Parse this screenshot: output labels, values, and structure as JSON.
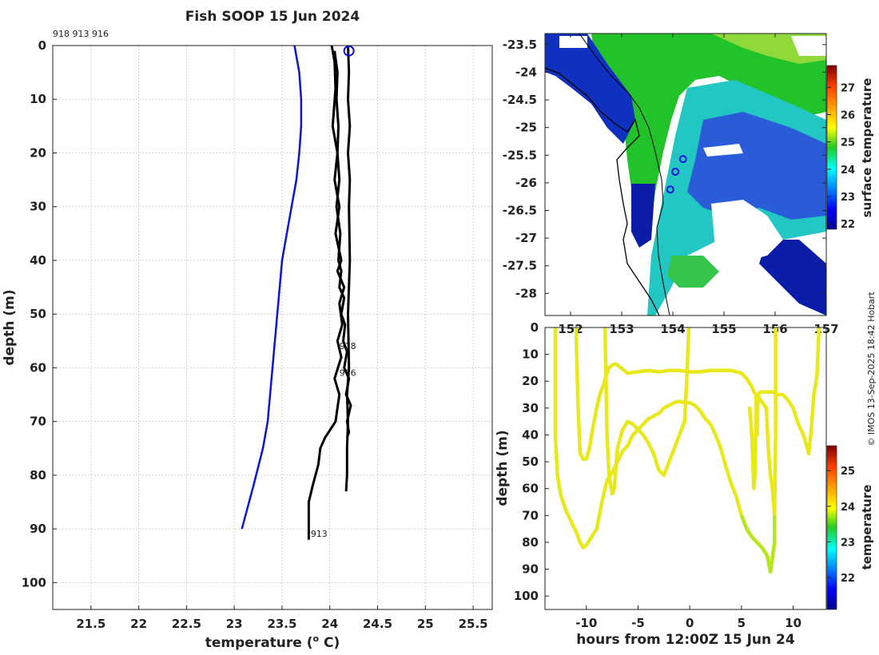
{
  "title": "Fish SOOP 15 Jun 2024",
  "credit": "© IMOS 13-Sep-2025 18:42 Hobart",
  "colors": {
    "climatology": "#0a14d8",
    "profiles": "#000000",
    "yellow": "#e8e81a",
    "greenyellow": "#b6e620"
  },
  "chart_data": [
    {
      "type": "line",
      "name": "temperature-depth-profiles",
      "xlabel": "temperature (",
      "xlabel_unit": "o",
      "xlabel_tail": " C)",
      "ylabel": "depth (m)",
      "xlim": [
        21.1,
        25.7
      ],
      "ylim": [
        105,
        0
      ],
      "xticks": [
        "21.5",
        "22",
        "22.5",
        "23",
        "23.5",
        "24",
        "24.5",
        "25",
        "25.5"
      ],
      "yticks": [
        "0",
        "10",
        "20",
        "30",
        "40",
        "50",
        "60",
        "70",
        "80",
        "90",
        "100"
      ],
      "top_label": "918 913 916",
      "profile_labels": [
        {
          "text": "918",
          "x": 24.1,
          "y": 56.5
        },
        {
          "text": "916",
          "x": 24.1,
          "y": 61.5
        },
        {
          "text": "913",
          "x": 23.8,
          "y": 91.5
        }
      ],
      "marker": {
        "x": 24.2,
        "y": 1
      },
      "series": [
        {
          "name": "climatology",
          "x": [
            23.63,
            23.68,
            23.7,
            23.7,
            23.68,
            23.65,
            23.6,
            23.55,
            23.5,
            23.45,
            23.4,
            23.35,
            23.3,
            23.2,
            23.08
          ],
          "y": [
            0,
            5,
            10,
            15,
            20,
            25,
            30,
            35,
            40,
            50,
            60,
            70,
            75,
            82,
            90
          ]
        },
        {
          "name": "918",
          "x": [
            24.05,
            24.08,
            24.07,
            24.09,
            24.08,
            24.1,
            24.07,
            24.11,
            24.09,
            24.12,
            24.1,
            24.15,
            24.12,
            24.16,
            24.14,
            24.18,
            24.15,
            24.2,
            24.17,
            24.22,
            24.18,
            24.2,
            24.18
          ],
          "y": [
            1,
            5,
            10,
            15,
            20,
            25,
            30,
            35,
            40,
            42,
            45,
            47,
            50,
            52,
            55,
            57,
            60,
            62,
            65,
            67,
            70,
            72,
            73
          ]
        },
        {
          "name": "916",
          "x": [
            24.19,
            24.2,
            24.19,
            24.21,
            24.19,
            24.21,
            24.2,
            24.21,
            24.19,
            24.2,
            24.18,
            24.19,
            24.18,
            24.18,
            24.17
          ],
          "y": [
            0,
            5,
            10,
            15,
            20,
            25,
            30,
            40,
            50,
            60,
            65,
            70,
            75,
            80,
            83
          ]
        },
        {
          "name": "913",
          "x": [
            24.02,
            24.05,
            24.06,
            24.03,
            24.08,
            24.05,
            24.1,
            24.06,
            24.12,
            24.08,
            24.15,
            24.1,
            24.13,
            24.08,
            24.12,
            24.05,
            24.1,
            24.06,
            23.95,
            23.9,
            23.88,
            23.82,
            23.78,
            23.78,
            23.78
          ],
          "y": [
            0,
            3,
            8,
            15,
            20,
            25,
            30,
            35,
            40,
            42,
            45,
            48,
            52,
            55,
            58,
            62,
            65,
            70,
            73,
            75,
            78,
            82,
            85,
            88,
            92
          ]
        }
      ]
    },
    {
      "type": "heatmap",
      "name": "surface-temperature-map",
      "colorbar_label": "surface temperature",
      "colorbar_ticks": [
        "22",
        "23",
        "24",
        "25",
        "26",
        "27"
      ],
      "colorbar_range": [
        21.8,
        27.8
      ],
      "xticks": [
        "152",
        "153",
        "154",
        "155",
        "156",
        "157"
      ],
      "yticks": [
        "-23.5",
        "-24",
        "-24.5",
        "-25",
        "-25.5",
        "-26",
        "-26.5",
        "-27",
        "-27.5",
        "-28"
      ],
      "xlim": [
        151.5,
        157
      ],
      "ylim": [
        -28.4,
        -23.3
      ],
      "markers": [
        {
          "lon": 154.2,
          "lat": -25.57
        },
        {
          "lon": 154.05,
          "lat": -25.8
        },
        {
          "lon": 153.95,
          "lat": -26.12
        }
      ]
    },
    {
      "type": "scatter",
      "name": "depth-time-section",
      "xlabel": "hours from 12:00Z 15 Jun 24",
      "ylabel": "depth (m)",
      "colorbar_label": "temperature",
      "colorbar_ticks": [
        "22",
        "23",
        "24",
        "25"
      ],
      "colorbar_range": [
        21.1,
        25.7
      ],
      "xlim": [
        -14,
        13.2
      ],
      "ylim": [
        105,
        0
      ],
      "xticks": [
        "-10",
        "-5",
        "0",
        "5",
        "10"
      ],
      "yticks": [
        "0",
        "10",
        "20",
        "30",
        "40",
        "50",
        "60",
        "70",
        "80",
        "90",
        "100"
      ],
      "series": [
        {
          "name": "dive-a",
          "x": [
            -13,
            -13,
            -12.8,
            -12.5,
            -12,
            -11.5,
            -11,
            -10.6,
            -10.3,
            -10,
            -9.5,
            -9,
            -8.5,
            -8,
            -7.5,
            -7,
            -6.5,
            -6,
            -5.5,
            -5,
            -4.5,
            -4,
            -3.5,
            -3,
            -2.5,
            -2,
            -1.5,
            -1,
            -0.5,
            0,
            0.5,
            1,
            1.5,
            2,
            2.5,
            3,
            3.5,
            4,
            4.5,
            5,
            5.5,
            6,
            6.5,
            7,
            7.5,
            7.8,
            8.2,
            8.2,
            8.3,
            8.3
          ],
          "y": [
            0,
            40,
            55,
            62,
            68,
            72,
            76,
            80,
            82,
            81,
            78,
            75,
            65,
            57,
            54,
            50,
            46,
            44,
            40,
            38,
            36,
            34,
            33,
            32,
            30,
            29,
            28,
            27.5,
            28,
            28,
            29,
            31,
            34,
            36,
            40,
            45,
            52,
            58,
            63,
            70,
            75,
            78,
            80,
            82,
            85,
            91,
            80,
            70,
            40,
            0
          ]
        },
        {
          "name": "dive-b",
          "x": [
            -11,
            -10.8,
            -10.6,
            -10.3,
            -10,
            -9.7,
            -9.4,
            -9,
            -8.7,
            -8.4,
            -8.1,
            -7.8,
            -7.5,
            -7.2,
            -7,
            -6.5,
            -6,
            -5,
            -4,
            -3,
            -2,
            -1,
            0,
            1,
            2,
            3,
            4,
            5,
            5.5,
            6,
            6.2,
            6.4,
            6.5,
            6.6,
            6.8,
            7,
            7.5,
            8,
            8.5,
            9,
            9.5,
            10,
            10.5,
            11,
            11.3,
            11.5,
            11.7,
            12,
            12.3,
            12.5
          ],
          "y": [
            0,
            30,
            47,
            49,
            49,
            45,
            38,
            30,
            25,
            22,
            18,
            15,
            14,
            13.5,
            14,
            15.5,
            17,
            16.5,
            16,
            16.5,
            16,
            16,
            16.5,
            16.5,
            16,
            16,
            16,
            17,
            19,
            22,
            24,
            25,
            40,
            25,
            24,
            24,
            24,
            24,
            25,
            25,
            27,
            30,
            36,
            40,
            44,
            47,
            40,
            25,
            18,
            0
          ]
        },
        {
          "name": "dive-c",
          "x": [
            -8.2,
            -8.1,
            -8,
            -7.8,
            -7.5,
            -7.3,
            -7,
            -6.5,
            -6,
            -5.5,
            -5,
            -4.5,
            -4,
            -3.5,
            -3,
            -2.5,
            -2,
            -1.5,
            -1,
            -0.5,
            -0.3,
            -0.2,
            -0.1
          ],
          "y": [
            0,
            20,
            40,
            55,
            62,
            60,
            45,
            38,
            35,
            36,
            38,
            40,
            43,
            47,
            53,
            55,
            50,
            45,
            40,
            35,
            20,
            10,
            0
          ]
        },
        {
          "name": "dive-d",
          "x": [
            5.8,
            6,
            6.1,
            6.2,
            6.3,
            6.4,
            6.5,
            7.4,
            7.6,
            7.8,
            8,
            8.2
          ],
          "y": [
            30,
            40,
            50,
            60,
            55,
            35,
            25,
            30,
            45,
            55,
            60,
            70
          ]
        }
      ]
    }
  ]
}
